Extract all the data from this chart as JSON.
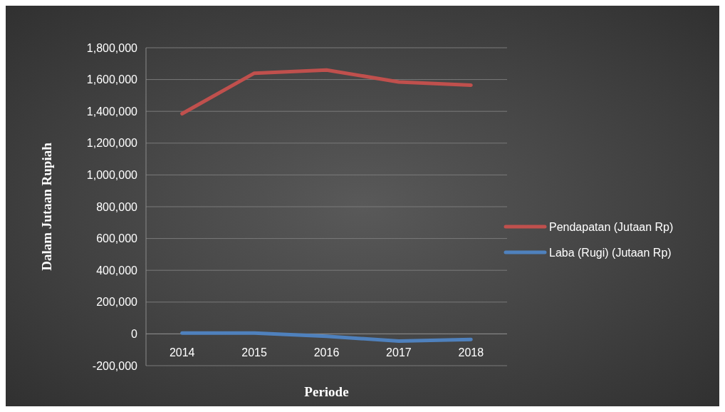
{
  "chart_data": {
    "type": "line",
    "xlabel": "Periode",
    "ylabel": "Dalam Jutaan Rupiah",
    "categories": [
      "2014",
      "2015",
      "2016",
      "2017",
      "2018"
    ],
    "series": [
      {
        "name": "Pendapatan (Jutaan Rp)",
        "color": "#c0504d",
        "values": [
          1385000,
          1640000,
          1660000,
          1585000,
          1565000
        ]
      },
      {
        "name": "Laba (Rugi) (Jutaan Rp)",
        "color": "#4f81bd",
        "values": [
          5000,
          5000,
          -15000,
          -45000,
          -35000
        ]
      }
    ],
    "ylim": [
      -200000,
      1800000
    ],
    "yticks": [
      {
        "value": -200000,
        "label": "-200,000"
      },
      {
        "value": 0,
        "label": "0"
      },
      {
        "value": 200000,
        "label": "200,000"
      },
      {
        "value": 400000,
        "label": "400,000"
      },
      {
        "value": 600000,
        "label": "600,000"
      },
      {
        "value": 800000,
        "label": "800,000"
      },
      {
        "value": 1000000,
        "label": "1,000,000"
      },
      {
        "value": 1200000,
        "label": "1,200,000"
      },
      {
        "value": 1400000,
        "label": "1,400,000"
      },
      {
        "value": 1600000,
        "label": "1,600,000"
      },
      {
        "value": 1800000,
        "label": "1,800,000"
      }
    ],
    "grid": "y",
    "legend": "right",
    "marker": "none",
    "line_style": "solid"
  }
}
